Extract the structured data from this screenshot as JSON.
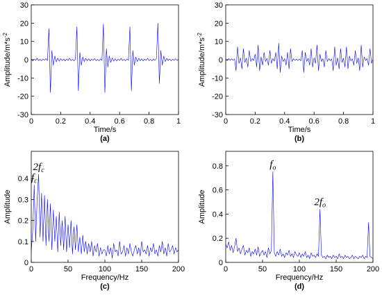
{
  "chart_data": [
    {
      "type": "line",
      "color": "#0000ff",
      "xlabel": "Time/s",
      "caption": "(a)",
      "ylabel": {
        "text": "Amplitude/m*s",
        "sup": "-2"
      },
      "xlim": [
        0,
        1
      ],
      "ylim": [
        -30,
        30
      ],
      "xticks": [
        0,
        0.2,
        0.4,
        0.6,
        0.8,
        1
      ],
      "yticks": [
        -30,
        -20,
        -10,
        0,
        10,
        20,
        30
      ],
      "x": [
        0,
        0.01,
        0.02,
        0.03,
        0.04,
        0.05,
        0.06,
        0.07,
        0.08,
        0.09,
        0.1,
        0.11,
        0.12,
        0.13,
        0.14,
        0.15,
        0.16,
        0.17,
        0.18,
        0.19,
        0.2,
        0.21,
        0.22,
        0.23,
        0.24,
        0.25,
        0.26,
        0.27,
        0.28,
        0.29,
        0.3,
        0.31,
        0.32,
        0.33,
        0.34,
        0.35,
        0.36,
        0.37,
        0.38,
        0.39,
        0.4,
        0.41,
        0.42,
        0.43,
        0.44,
        0.45,
        0.46,
        0.47,
        0.48,
        0.49,
        0.5,
        0.51,
        0.52,
        0.53,
        0.54,
        0.55,
        0.56,
        0.57,
        0.58,
        0.59,
        0.6,
        0.61,
        0.62,
        0.63,
        0.64,
        0.65,
        0.66,
        0.67,
        0.68,
        0.69,
        0.7,
        0.71,
        0.72,
        0.73,
        0.74,
        0.75,
        0.76,
        0.77,
        0.78,
        0.79,
        0.8,
        0.81,
        0.82,
        0.83,
        0.84,
        0.85,
        0.86,
        0.87,
        0.88,
        0.89,
        0.9,
        0.91,
        0.92,
        0.93,
        0.94,
        0.95,
        0.96,
        0.97,
        0.98,
        0.99,
        1
      ],
      "values": [
        0.5,
        -0.7,
        0.3,
        -0.4,
        0.8,
        -0.5,
        0.2,
        -0.6,
        0.4,
        -0.3,
        0.6,
        -0.5,
        17,
        -18,
        5,
        -3,
        2,
        -1.2,
        0.9,
        -0.8,
        0.6,
        -0.5,
        0.4,
        -0.7,
        0.3,
        -0.4,
        0.8,
        -0.5,
        0.2,
        -0.6,
        0.4,
        18,
        -17,
        4,
        -3,
        1.5,
        -1,
        0.8,
        -0.6,
        0.5,
        -0.7,
        0.3,
        -0.4,
        0.6,
        -0.5,
        0.2,
        -0.6,
        0.4,
        -0.3,
        19.5,
        -18,
        6,
        -4,
        2,
        -1.5,
        1,
        -0.8,
        0.5,
        -0.7,
        0.3,
        -0.4,
        0.8,
        -0.5,
        0.2,
        -0.6,
        0.4,
        -0.3,
        18,
        -17,
        5,
        -3,
        1.5,
        -1,
        0.8,
        -0.6,
        0.5,
        -0.7,
        0.3,
        -0.4,
        0.8,
        -0.5,
        0.2,
        -0.6,
        0.4,
        -0.3,
        0.6,
        20,
        -13,
        5,
        -3,
        2,
        -1,
        0.7,
        -0.5,
        0.4,
        -0.6,
        0.3,
        -0.4,
        0.5,
        -0.3,
        0.2
      ]
    },
    {
      "type": "line",
      "color": "#0000ff",
      "xlabel": "Time/s",
      "caption": "(b)",
      "ylabel": {
        "text": "Amplitude/m*s",
        "sup": "-2"
      },
      "xlim": [
        0,
        1
      ],
      "ylim": [
        -30,
        30
      ],
      "xticks": [
        0,
        0.2,
        0.4,
        0.6,
        0.8,
        1
      ],
      "yticks": [
        -30,
        -20,
        -10,
        0,
        10,
        20,
        30
      ],
      "x": [
        0,
        0.01,
        0.02,
        0.03,
        0.04,
        0.05,
        0.06,
        0.07,
        0.08,
        0.09,
        0.1,
        0.11,
        0.12,
        0.13,
        0.14,
        0.15,
        0.16,
        0.17,
        0.18,
        0.19,
        0.2,
        0.21,
        0.22,
        0.23,
        0.24,
        0.25,
        0.26,
        0.27,
        0.28,
        0.29,
        0.3,
        0.31,
        0.32,
        0.33,
        0.34,
        0.35,
        0.36,
        0.37,
        0.38,
        0.39,
        0.4,
        0.41,
        0.42,
        0.43,
        0.44,
        0.45,
        0.46,
        0.47,
        0.48,
        0.49,
        0.5,
        0.51,
        0.52,
        0.53,
        0.54,
        0.55,
        0.56,
        0.57,
        0.58,
        0.59,
        0.6,
        0.61,
        0.62,
        0.63,
        0.64,
        0.65,
        0.66,
        0.67,
        0.68,
        0.69,
        0.7,
        0.71,
        0.72,
        0.73,
        0.74,
        0.75,
        0.76,
        0.77,
        0.78,
        0.79,
        0.8,
        0.81,
        0.82,
        0.83,
        0.84,
        0.85,
        0.86,
        0.87,
        0.88,
        0.89,
        0.9,
        0.91,
        0.92,
        0.93,
        0.94,
        0.95,
        0.96,
        0.97,
        0.98,
        0.99,
        1
      ],
      "values": [
        0.3,
        -0.5,
        0.6,
        -0.4,
        0.5,
        -0.3,
        0.4,
        -6,
        7,
        -2,
        1,
        -5,
        6,
        -1.5,
        0.8,
        -4,
        5,
        -1,
        0.6,
        -0.5,
        3,
        -4,
        8,
        -6,
        1.5,
        -3,
        4,
        -1,
        0.7,
        -3,
        5,
        -2,
        0.6,
        -0.8,
        4,
        -5,
        9,
        -7,
        2,
        -1,
        0.6,
        -3,
        4,
        -5,
        6,
        -1,
        0.5,
        -0.4,
        0.3,
        -0.5,
        0.4,
        -0.6,
        5,
        -7,
        4,
        -1,
        0.8,
        -3,
        6,
        -4,
        1,
        -2,
        8,
        -6,
        3,
        -1,
        0.5,
        -4,
        5,
        -1,
        0.6,
        -0.5,
        0.4,
        -6,
        7,
        -3,
        1,
        -5,
        6,
        -1.5,
        0.8,
        -4,
        7,
        -5,
        2,
        -0.6,
        0.5,
        -3,
        5,
        -2,
        1,
        -6,
        8,
        -4,
        1.5,
        -0.5,
        0.6,
        -3,
        6,
        -2,
        0.4
      ]
    },
    {
      "type": "line",
      "color": "#0000ff",
      "xlabel": "Frequency/Hz",
      "caption": "(c)",
      "ylabel": {
        "text": "Amplitude"
      },
      "xlim": [
        0,
        200
      ],
      "ylim": [
        0,
        0.53
      ],
      "xticks": [
        0,
        50,
        100,
        150,
        200
      ],
      "yticks": [
        0,
        0.1,
        0.2,
        0.3,
        0.4
      ],
      "annotations": [
        {
          "text": "f",
          "sub": "c",
          "x": 4,
          "y": 0.37
        },
        {
          "text": "2f",
          "sub": "c",
          "x": 10,
          "y": 0.42
        }
      ],
      "x": [
        0,
        2,
        4,
        6,
        8,
        10,
        12,
        14,
        16,
        18,
        20,
        22,
        24,
        26,
        28,
        30,
        32,
        34,
        36,
        38,
        40,
        42,
        44,
        46,
        48,
        50,
        52,
        54,
        56,
        58,
        60,
        62,
        64,
        66,
        68,
        70,
        72,
        74,
        76,
        78,
        80,
        82,
        84,
        86,
        88,
        90,
        92,
        94,
        96,
        98,
        100,
        102,
        104,
        106,
        108,
        110,
        112,
        114,
        116,
        118,
        120,
        122,
        124,
        126,
        128,
        130,
        132,
        134,
        136,
        138,
        140,
        142,
        144,
        146,
        148,
        150,
        152,
        154,
        156,
        158,
        160,
        162,
        164,
        166,
        168,
        170,
        172,
        174,
        176,
        178,
        180,
        182,
        184,
        186,
        188,
        190,
        192,
        194,
        196,
        198,
        200
      ],
      "values": [
        0.05,
        0.15,
        0.37,
        0.1,
        0.3,
        0.42,
        0.12,
        0.33,
        0.1,
        0.32,
        0.08,
        0.3,
        0.1,
        0.28,
        0.06,
        0.25,
        0.1,
        0.22,
        0.05,
        0.24,
        0.08,
        0.2,
        0.06,
        0.22,
        0.05,
        0.18,
        0.07,
        0.2,
        0.04,
        0.17,
        0.06,
        0.18,
        0.05,
        0.12,
        0.04,
        0.13,
        0.05,
        0.1,
        0.04,
        0.09,
        0.05,
        0.1,
        0.03,
        0.08,
        0.05,
        0.09,
        0.03,
        0.07,
        0.04,
        0.06,
        0.06,
        0.03,
        0.08,
        0.04,
        0.07,
        0.02,
        0.09,
        0.05,
        0.06,
        0.03,
        0.1,
        0.04,
        0.05,
        0.08,
        0.03,
        0.07,
        0.04,
        0.09,
        0.05,
        0.03,
        0.06,
        0.08,
        0.04,
        0.07,
        0.03,
        0.1,
        0.05,
        0.06,
        0.04,
        0.08,
        0.03,
        0.07,
        0.05,
        0.09,
        0.04,
        0.06,
        0.03,
        0.08,
        0.05,
        0.1,
        0.04,
        0.07,
        0.03,
        0.09,
        0.05,
        0.06,
        0.08,
        0.04,
        0.07,
        0.05,
        0.06
      ]
    },
    {
      "type": "line",
      "color": "#0000ff",
      "xlabel": "Frequency/Hz",
      "caption": "(d)",
      "ylabel": {
        "text": "Amplitude"
      },
      "xlim": [
        0,
        200
      ],
      "ylim": [
        0,
        0.92
      ],
      "xticks": [
        0,
        50,
        100,
        150,
        200
      ],
      "yticks": [
        0,
        0.2,
        0.4,
        0.6,
        0.8
      ],
      "annotations": [
        {
          "text": "f",
          "sub": "o",
          "x": 64,
          "y": 0.75
        },
        {
          "text": "2f",
          "sub": "o",
          "x": 128,
          "y": 0.44
        }
      ],
      "x": [
        0,
        2,
        4,
        6,
        8,
        10,
        12,
        14,
        16,
        18,
        20,
        22,
        24,
        26,
        28,
        30,
        32,
        34,
        36,
        38,
        40,
        42,
        44,
        46,
        48,
        50,
        52,
        54,
        56,
        58,
        60,
        62,
        64,
        66,
        68,
        70,
        72,
        74,
        76,
        78,
        80,
        82,
        84,
        86,
        88,
        90,
        92,
        94,
        96,
        98,
        100,
        102,
        104,
        106,
        108,
        110,
        112,
        114,
        116,
        118,
        120,
        122,
        124,
        126,
        128,
        130,
        132,
        134,
        136,
        138,
        140,
        142,
        144,
        146,
        148,
        150,
        152,
        154,
        156,
        158,
        160,
        162,
        164,
        166,
        168,
        170,
        172,
        174,
        176,
        178,
        180,
        182,
        184,
        186,
        188,
        190,
        192,
        194,
        196,
        198,
        200
      ],
      "values": [
        0.15,
        0.12,
        0.17,
        0.1,
        0.14,
        0.08,
        0.13,
        0.2,
        0.09,
        0.12,
        0.07,
        0.11,
        0.14,
        0.06,
        0.1,
        0.08,
        0.12,
        0.05,
        0.09,
        0.07,
        0.11,
        0.06,
        0.13,
        0.05,
        0.08,
        0.1,
        0.06,
        0.09,
        0.04,
        0.12,
        0.07,
        0.1,
        0.75,
        0.08,
        0.05,
        0.09,
        0.06,
        0.11,
        0.05,
        0.07,
        0.04,
        0.08,
        0.06,
        0.1,
        0.05,
        0.07,
        0.04,
        0.09,
        0.06,
        0.05,
        0.08,
        0.04,
        0.07,
        0.05,
        0.09,
        0.04,
        0.06,
        0.03,
        0.08,
        0.05,
        0.06,
        0.04,
        0.07,
        0.05,
        0.44,
        0.06,
        0.04,
        0.05,
        0.03,
        0.06,
        0.04,
        0.05,
        0.03,
        0.06,
        0.04,
        0.05,
        0.03,
        0.07,
        0.04,
        0.05,
        0.03,
        0.06,
        0.04,
        0.05,
        0.03,
        0.04,
        0.06,
        0.03,
        0.05,
        0.04,
        0.03,
        0.05,
        0.04,
        0.06,
        0.03,
        0.05,
        0.04,
        0.33,
        0.05,
        0.04,
        0.03
      ]
    }
  ]
}
